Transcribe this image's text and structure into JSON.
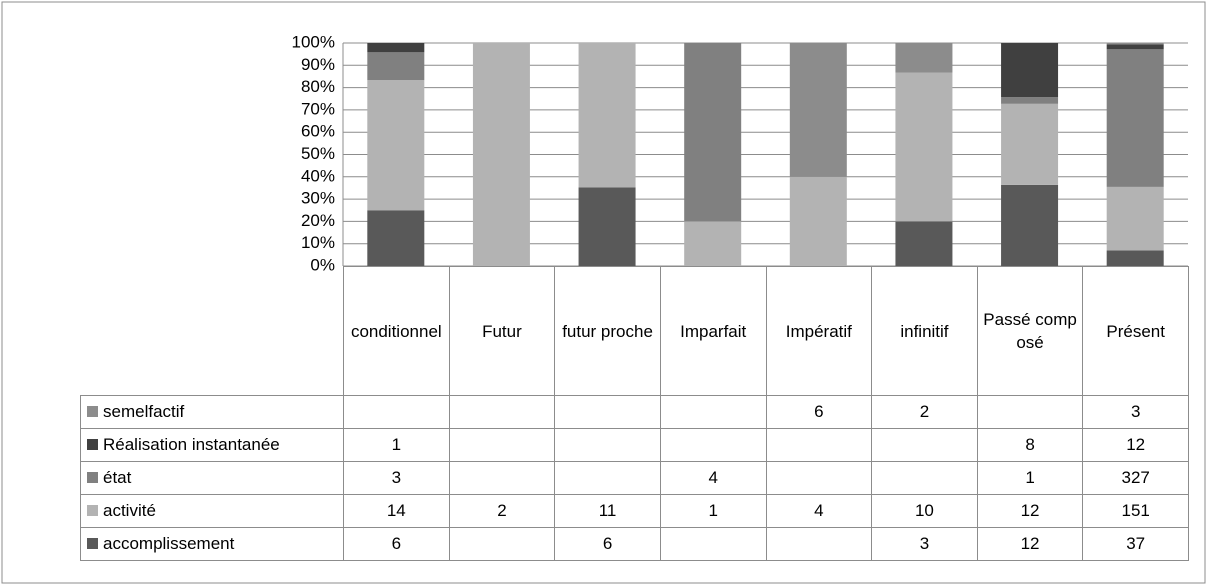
{
  "chart_data": {
    "type": "bar",
    "stacking": "percent",
    "categories": [
      "conditionnel",
      "Futur",
      "futur proche",
      "Imparfait",
      "Impératif",
      "infinitif",
      "Passé composé",
      "Présent"
    ],
    "series": [
      {
        "name": "accomplissement",
        "color": "#595959",
        "values": [
          6,
          null,
          6,
          null,
          null,
          3,
          12,
          37
        ]
      },
      {
        "name": "activité",
        "color": "#b3b3b3",
        "values": [
          14,
          2,
          11,
          1,
          4,
          10,
          12,
          151
        ]
      },
      {
        "name": "état",
        "color": "#808080",
        "values": [
          3,
          null,
          null,
          4,
          null,
          null,
          1,
          327
        ]
      },
      {
        "name": "Réalisation instantanée",
        "color": "#404040",
        "values": [
          1,
          null,
          null,
          null,
          null,
          null,
          8,
          12
        ]
      },
      {
        "name": "semelfactif",
        "color": "#8c8c8c",
        "values": [
          null,
          null,
          null,
          null,
          6,
          2,
          null,
          3
        ]
      }
    ],
    "ylim": [
      0,
      100
    ],
    "yticks": [
      {
        "value": 0,
        "label": "0%"
      },
      {
        "value": 10,
        "label": "10%"
      },
      {
        "value": 20,
        "label": "20%"
      },
      {
        "value": 30,
        "label": "30%"
      },
      {
        "value": 40,
        "label": "40%"
      },
      {
        "value": 50,
        "label": "50%"
      },
      {
        "value": 60,
        "label": "60%"
      },
      {
        "value": 70,
        "label": "70%"
      },
      {
        "value": 80,
        "label": "80%"
      },
      {
        "value": 90,
        "label": "90%"
      },
      {
        "value": 100,
        "label": "100%"
      }
    ],
    "grid": true,
    "data_table": true
  }
}
